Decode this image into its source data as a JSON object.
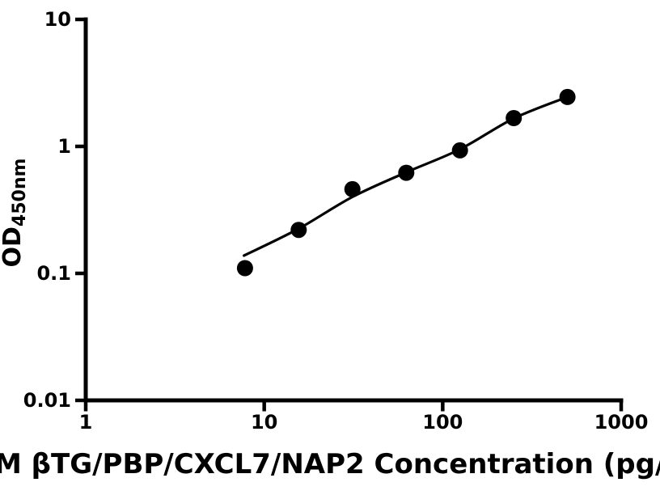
{
  "figure": {
    "background": "#ffffff",
    "axis_color": "#000000"
  },
  "chart_data": {
    "type": "scatter",
    "title": "",
    "xlabel_visible": "M βTG/PBP/CXCL7/NAP2 Concentration (pg/",
    "ylabel_main": "OD",
    "ylabel_sub": "450nm",
    "x_scale": "log",
    "y_scale": "log",
    "xlim": [
      1,
      1000
    ],
    "ylim": [
      0.01,
      10
    ],
    "grid": false,
    "legend": null,
    "marker_color": "#000000",
    "line_color": "#000000",
    "x_ticks": [
      {
        "v": 1,
        "label": "1"
      },
      {
        "v": 10,
        "label": "10"
      },
      {
        "v": 100,
        "label": "100"
      },
      {
        "v": 1000,
        "label": "1000"
      }
    ],
    "y_ticks": [
      {
        "v": 10,
        "label": "10"
      },
      {
        "v": 1,
        "label": "1"
      },
      {
        "v": 0.1,
        "label": "0.1"
      },
      {
        "v": 0.01,
        "label": "0.01"
      }
    ],
    "points": [
      {
        "x": 7.8,
        "y": 0.11
      },
      {
        "x": 15.6,
        "y": 0.22
      },
      {
        "x": 31.2,
        "y": 0.46
      },
      {
        "x": 62.5,
        "y": 0.62
      },
      {
        "x": 125,
        "y": 0.93
      },
      {
        "x": 250,
        "y": 1.67
      },
      {
        "x": 500,
        "y": 2.45
      }
    ],
    "fit_line": [
      [
        7.7,
        0.138
      ],
      [
        15.6,
        0.225
      ],
      [
        31.2,
        0.4
      ],
      [
        62.5,
        0.625
      ],
      [
        125,
        0.95
      ],
      [
        250,
        1.66
      ],
      [
        500,
        2.45
      ]
    ]
  }
}
